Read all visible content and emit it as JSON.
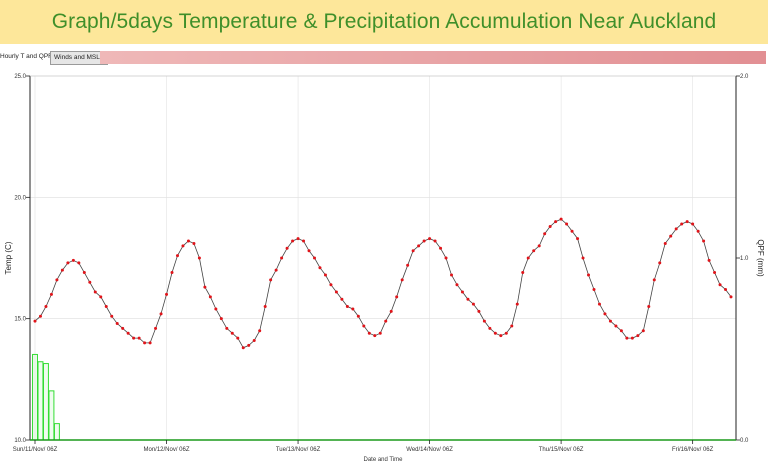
{
  "banner": {
    "title": "Graph/5days Temperature & Precipitation Accumulation Near Auckland"
  },
  "tabs": {
    "hourly": "Hourly T and QPF",
    "winds": "Winds and MSLP"
  },
  "colors": {
    "banner_bg": "#fde79a",
    "title": "#3f8f2a",
    "temp_marker": "#e0141a",
    "temp_line": "#444444",
    "qpf_bar": "#33dd33",
    "qpf_baseline": "#1a9a1a",
    "grid": "#dddddd"
  },
  "chart_data": {
    "type": "line",
    "xlabel": "Date and Time",
    "ylabel": "Temp (C)",
    "y2label": "QPF (mm)",
    "ylim": [
      10,
      25
    ],
    "y2lim": [
      0,
      2
    ],
    "yticks": [
      "25.0",
      "20.0",
      "15.0",
      "10.0"
    ],
    "y2ticks": [
      "2.0",
      "1.0",
      "0.0"
    ],
    "xticks": [
      {
        "label": "Sun/11/Nov/ 06Z",
        "hour": 0
      },
      {
        "label": "Mon/12/Nov/ 06Z",
        "hour": 24
      },
      {
        "label": "Tue/13/Nov/ 06Z",
        "hour": 48
      },
      {
        "label": "Wed/14/Nov/ 06Z",
        "hour": 72
      },
      {
        "label": "Thu/15/Nov/ 06Z",
        "hour": 96
      },
      {
        "label": "Fri/16/Nov/ 06Z",
        "hour": 120
      }
    ],
    "x_unit": "hours after Sun/11/Nov/ 06Z",
    "grid": true,
    "series": [
      {
        "kind": "line",
        "axis": "left",
        "x": [
          0,
          1,
          2,
          3,
          4,
          5,
          6,
          7,
          8,
          9,
          10,
          11,
          12,
          13,
          14,
          15,
          16,
          17,
          18,
          19,
          20,
          21,
          22,
          23,
          24,
          25,
          26,
          27,
          28,
          29,
          30,
          31,
          32,
          33,
          34,
          35,
          36,
          37,
          38,
          39,
          40,
          41,
          42,
          43,
          44,
          45,
          46,
          47,
          48,
          49,
          50,
          51,
          52,
          53,
          54,
          55,
          56,
          57,
          58,
          59,
          60,
          61,
          62,
          63,
          64,
          65,
          66,
          67,
          68,
          69,
          70,
          71,
          72,
          73,
          74,
          75,
          76,
          77,
          78,
          79,
          80,
          81,
          82,
          83,
          84,
          85,
          86,
          87,
          88,
          89,
          90,
          91,
          92,
          93,
          94,
          95,
          96,
          97,
          98,
          99,
          100,
          101,
          102,
          103,
          104,
          105,
          106,
          107,
          108,
          109,
          110,
          111,
          112,
          113,
          114,
          115,
          116,
          117,
          118,
          119,
          120,
          121,
          122,
          123,
          124,
          125,
          126,
          127
        ],
        "values": [
          14.9,
          15.1,
          15.5,
          16.0,
          16.6,
          17.0,
          17.3,
          17.4,
          17.3,
          16.9,
          16.5,
          16.1,
          15.9,
          15.5,
          15.1,
          14.8,
          14.6,
          14.4,
          14.2,
          14.2,
          14.0,
          14.0,
          14.6,
          15.2,
          16.0,
          16.9,
          17.6,
          18.0,
          18.2,
          18.1,
          17.5,
          16.3,
          15.9,
          15.4,
          15.0,
          14.6,
          14.4,
          14.2,
          13.8,
          13.9,
          14.1,
          14.5,
          15.5,
          16.6,
          17.0,
          17.5,
          17.9,
          18.2,
          18.3,
          18.2,
          17.8,
          17.5,
          17.1,
          16.8,
          16.4,
          16.1,
          15.8,
          15.5,
          15.4,
          15.1,
          14.7,
          14.4,
          14.3,
          14.4,
          14.9,
          15.3,
          15.9,
          16.6,
          17.2,
          17.8,
          18.0,
          18.2,
          18.3,
          18.2,
          17.9,
          17.5,
          16.8,
          16.4,
          16.1,
          15.8,
          15.6,
          15.3,
          14.9,
          14.6,
          14.4,
          14.3,
          14.4,
          14.7,
          15.6,
          16.9,
          17.5,
          17.8,
          18.0,
          18.5,
          18.8,
          19.0,
          19.1,
          18.9,
          18.6,
          18.3,
          17.5,
          16.8,
          16.2,
          15.6,
          15.2,
          14.9,
          14.7,
          14.5,
          14.2,
          14.2,
          14.3,
          14.5,
          15.5,
          16.6,
          17.3,
          18.1,
          18.4,
          18.7,
          18.9,
          19.0,
          18.9,
          18.6,
          18.2,
          17.4,
          16.9,
          16.4,
          16.2,
          15.9
        ]
      },
      {
        "kind": "bar",
        "axis": "right",
        "x": [
          0,
          1,
          2,
          3,
          4,
          5
        ],
        "values": [
          0.47,
          0.43,
          0.42,
          0.27,
          0.09,
          0.0
        ]
      }
    ]
  }
}
